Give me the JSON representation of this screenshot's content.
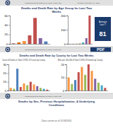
{
  "chart_data": [
    {
      "type": "bar",
      "categories": [
        null,
        null,
        null,
        null,
        null,
        null,
        null
      ],
      "values": [
        1,
        3,
        6,
        18,
        55,
        12,
        5
      ],
      "colors": [
        "#c0504d",
        "#e36c09",
        "#f79646",
        "#c0504d",
        "#c0504d",
        "#8064a2",
        "#4f81bd"
      ],
      "ylim": [
        0,
        60
      ],
      "yticks": [
        0,
        20,
        40,
        60
      ],
      "grid": false,
      "tick_labels": "y"
    },
    {
      "type": "bar",
      "categories": [
        null,
        null,
        null,
        null,
        null,
        null,
        null
      ],
      "values": [
        0.2,
        0.5,
        1,
        3,
        10,
        40,
        200
      ],
      "colors": [
        "#c0504d",
        "#e36c09",
        "#f79646",
        "#9bbb59",
        "#4bacc6",
        "#8064a2",
        "#c0504d"
      ],
      "ylim": [
        0,
        200
      ],
      "yticks": [
        0,
        100,
        200
      ],
      "grid": false,
      "tick_labels": "y"
    },
    {
      "type": "bar",
      "subtitle": "Count of Deaths in Total COVID-19 Cases by County",
      "categories": [
        null,
        null,
        null,
        null,
        null,
        null,
        null,
        null,
        null,
        null,
        null,
        null
      ],
      "values": [
        3,
        2,
        25,
        4,
        8,
        6,
        10,
        7,
        5,
        3,
        2,
        1
      ],
      "colors": [
        "#f79646",
        "#9bbb59",
        "#4f81bd",
        "#c0504d",
        "#f79646",
        "#9bbb59",
        "#c0504d",
        "#f79646",
        "#8064a2",
        "#9bbb59",
        "#4bacc6",
        "#c0504d"
      ],
      "ylim": [
        0,
        30
      ],
      "yticks": [
        0,
        10,
        20,
        30
      ],
      "grid": false,
      "tick_labels": "y"
    },
    {
      "type": "bar",
      "subtitle": "Rate per 100,000 of Total COVID-19 Deaths by County",
      "categories": [
        null,
        null,
        null,
        null,
        null,
        null,
        null,
        null,
        null,
        null,
        null,
        null
      ],
      "values": [
        10,
        5,
        8,
        14,
        18,
        12,
        20,
        15,
        9,
        6,
        4,
        2
      ],
      "colors": [
        "#f79646",
        "#9bbb59",
        "#4f81bd",
        "#c0504d",
        "#f79646",
        "#9bbb59",
        "#c0504d",
        "#f79646",
        "#8064a2",
        "#9bbb59",
        "#4bacc6",
        "#c0504d"
      ],
      "ylim": [
        0,
        20
      ],
      "yticks": [
        0,
        10,
        20
      ],
      "grid": false,
      "tick_labels": "y"
    }
  ],
  "panels": [
    {
      "header": "Massachusetts Department of Public Health (MD",
      "date": "Thursday November 19, 2020",
      "title": "Deaths and Death Rate by Age Group for Last Two\nWeeks",
      "annotations": [
        "Average\nLast 7",
        "81"
      ]
    },
    {
      "header": "Massachusetts Department of Public Health (MD",
      "title": "Deaths and Death Rate by County for Last Two Weeks",
      "annotations": [
        "PDF"
      ]
    },
    {
      "header": "Massachusetts Department of Public Health (MD",
      "title": "Deaths by Sex, Previous Hospitalization, & Underlying\nConditions",
      "subtitle": "Data current as of 11/18/2020"
    }
  ]
}
